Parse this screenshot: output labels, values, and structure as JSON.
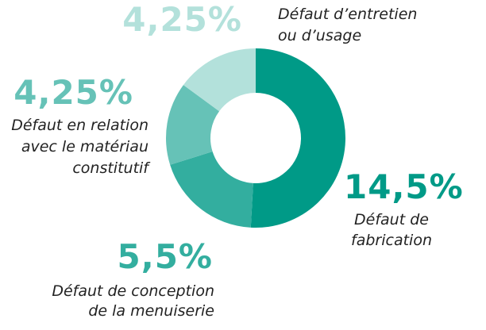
{
  "chart_data": {
    "type": "donut",
    "categories": [
      [
        "Défaut de",
        "fabrication"
      ],
      [
        "Défaut de conception",
        "de la menuiserie"
      ],
      [
        "Défaut en relation",
        "avec le matériau",
        "constitutif"
      ],
      [
        "Défaut d’entretien",
        "ou d’usage"
      ]
    ],
    "values": [
      14.5,
      5.5,
      4.25,
      4.25
    ],
    "value_labels": [
      "14,5%",
      "5,5%",
      "4,25%",
      "4,25%"
    ],
    "colors": [
      "#009a87",
      "#33ae9f",
      "#66c2b7",
      "#b3e1db"
    ]
  }
}
